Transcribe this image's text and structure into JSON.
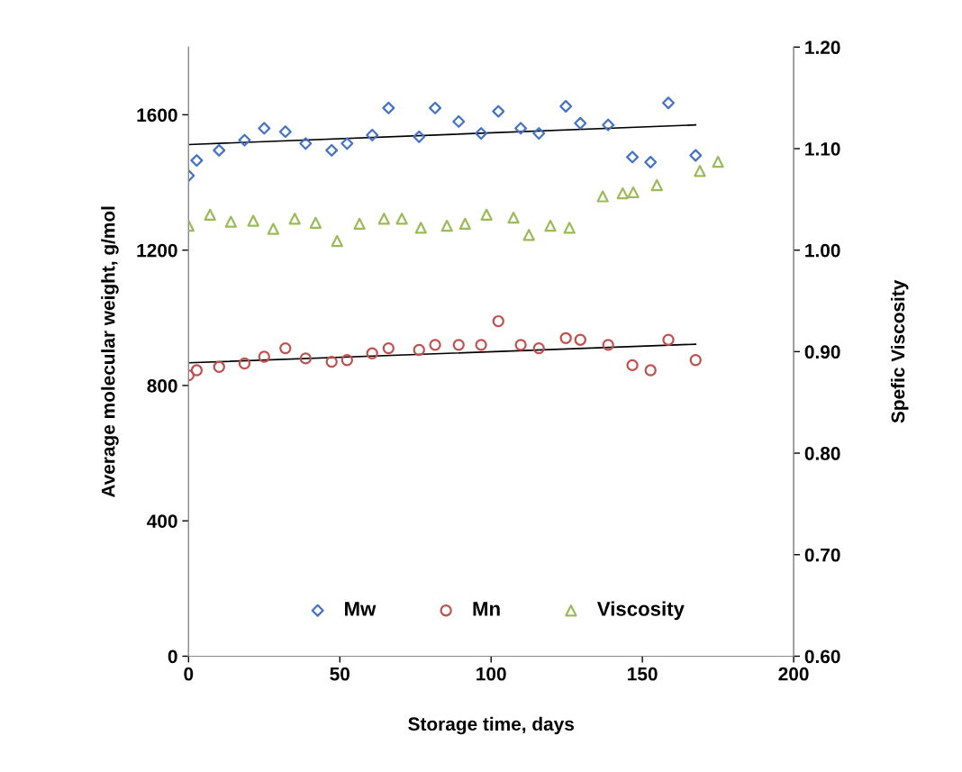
{
  "chart_data": {
    "type": "scatter",
    "xlabel": "Storage time, days",
    "ylabel": "Average molecular weight, g/mol",
    "y2label": "Spefic Viscosity",
    "xlim": [
      0,
      200
    ],
    "xticks": [
      0,
      50,
      100,
      150,
      200
    ],
    "ylim": [
      0,
      1800
    ],
    "yticks": [
      0,
      400,
      800,
      1200,
      1600
    ],
    "y2lim": [
      0.6,
      1.2
    ],
    "y2ticks": [
      {
        "value": 0.6,
        "label": "0.60"
      },
      {
        "value": 0.7,
        "label": "0.70"
      },
      {
        "value": 0.8,
        "label": "0.80"
      },
      {
        "value": 0.9,
        "label": "0.90"
      },
      {
        "value": 1.0,
        "label": "1.00"
      },
      {
        "value": 1.1,
        "label": "1.10"
      },
      {
        "value": 1.2,
        "label": "1.20"
      }
    ],
    "grid": false,
    "legend": "bottom",
    "series": [
      {
        "name": "Mw",
        "marker": "diamond",
        "color": "#4472c4",
        "x": [
          0,
          2.7,
          10.1,
          18.5,
          25,
          32,
          38.7,
          47.3,
          52.4,
          60.7,
          66.1,
          76.2,
          81.5,
          89.3,
          96.7,
          102.4,
          109.8,
          115.8,
          124.7,
          129.5,
          138.7,
          146.7,
          152.7,
          158.6,
          167.6
        ],
        "values": [
          1420,
          1465,
          1495,
          1525,
          1560,
          1550,
          1515,
          1495,
          1515,
          1540,
          1620,
          1535,
          1620,
          1580,
          1545,
          1610,
          1560,
          1545,
          1625,
          1575,
          1570,
          1475,
          1460,
          1635,
          1480
        ]
      },
      {
        "name": "Mn",
        "marker": "circle",
        "color": "#c0504d",
        "x": [
          0,
          2.7,
          10.1,
          18.5,
          25,
          32,
          38.7,
          47.3,
          52.4,
          60.7,
          66.1,
          76.2,
          81.5,
          89.3,
          96.7,
          102.4,
          109.8,
          115.8,
          124.7,
          129.5,
          138.7,
          146.7,
          152.7,
          158.6,
          167.6
        ],
        "values": [
          830,
          845,
          855,
          865,
          885,
          910,
          880,
          870,
          875,
          895,
          910,
          905,
          920,
          920,
          920,
          990,
          920,
          910,
          940,
          935,
          920,
          860,
          845,
          935,
          875
        ]
      },
      {
        "name": "Viscosity",
        "marker": "triangle",
        "axis": "y2",
        "color": "#9bbb59",
        "x": [
          0,
          7.1,
          14,
          21.4,
          28,
          35.1,
          42,
          49.1,
          56.5,
          64.6,
          70.5,
          76.8,
          85.4,
          91.4,
          98.5,
          107.4,
          112.5,
          119.6,
          125.9,
          136.9,
          143.5,
          147,
          154.8,
          169,
          175
        ],
        "values": [
          1.024,
          1.035,
          1.028,
          1.029,
          1.021,
          1.031,
          1.027,
          1.009,
          1.026,
          1.031,
          1.031,
          1.022,
          1.024,
          1.026,
          1.035,
          1.032,
          1.015,
          1.024,
          1.022,
          1.053,
          1.056,
          1.057,
          1.064,
          1.078,
          1.087
        ]
      },
      {
        "type": "line",
        "marker": "none",
        "color": "#000000",
        "x": [
          0,
          167.6
        ],
        "values": [
          1512,
          1570
        ]
      },
      {
        "type": "line",
        "marker": "none",
        "color": "#000000",
        "x": [
          0,
          167.6
        ],
        "values": [
          867,
          922
        ]
      }
    ]
  }
}
